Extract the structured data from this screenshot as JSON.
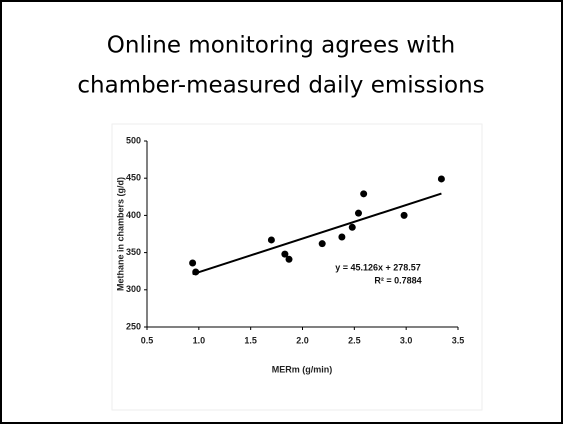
{
  "chart_data": {
    "type": "scatter",
    "title": [
      "Online monitoring agrees with",
      "chamber-measured daily emissions"
    ],
    "x_label": "MERm (g/min)",
    "y_label": "Methane in chambers (g/d)",
    "x": [
      0.94,
      0.97,
      1.7,
      1.83,
      1.87,
      2.19,
      2.38,
      2.48,
      2.54,
      2.59,
      2.98,
      3.34
    ],
    "values": [
      336,
      324,
      367,
      348,
      341,
      362,
      371,
      384,
      403,
      429,
      400,
      449
    ],
    "color": "#000000",
    "xlim": [
      0.5,
      3.5
    ],
    "xticks": [
      0.5,
      {
        "value": 1,
        "label": "1.0"
      },
      1.5,
      {
        "value": 2,
        "label": "2.0"
      },
      2.5,
      {
        "value": 3,
        "label": "3.0"
      },
      3.5
    ],
    "ylim": [
      250,
      500
    ],
    "yticks": [
      250,
      300,
      350,
      400,
      450,
      500
    ],
    "grid": false,
    "trendline": {
      "slope": 45.126,
      "intercept": 278.57,
      "equation": "y = 45.126x + 278.57",
      "r2": 0.7884,
      "r2_label": "R² = 0.7884"
    }
  }
}
